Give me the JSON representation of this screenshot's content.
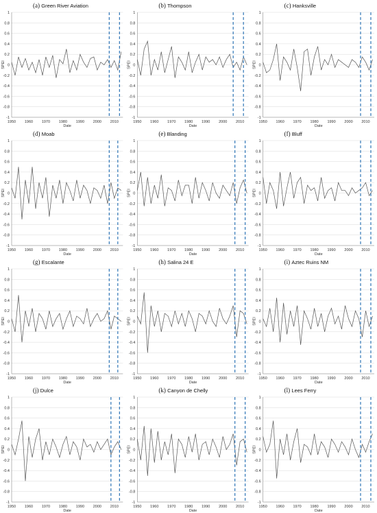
{
  "chart_data": [
    {
      "type": "line",
      "panel_letter": "(a)",
      "title": "Green River Aviation",
      "xlabel": "Date",
      "ylabel": "SPEI",
      "xlim": [
        1950,
        2015
      ],
      "ylim": [
        -1,
        1
      ],
      "x": [
        1950,
        1952,
        1954,
        1956,
        1958,
        1960,
        1962,
        1964,
        1966,
        1968,
        1970,
        1972,
        1974,
        1976,
        1978,
        1980,
        1982,
        1984,
        1986,
        1988,
        1990,
        1992,
        1994,
        1996,
        1998,
        2000,
        2002,
        2004,
        2006,
        2008,
        2010,
        2012,
        2014
      ],
      "series": [
        {
          "values": [
            0.05,
            -0.2,
            0.15,
            -0.05,
            0.12,
            -0.1,
            0.05,
            -0.15,
            0.1,
            -0.2,
            0.15,
            -0.05,
            0.18,
            -0.25,
            0.1,
            0.02,
            0.3,
            -0.15,
            0.08,
            -0.1,
            0.2,
            0.05,
            -0.05,
            0.12,
            0.15,
            -0.1,
            0.05,
            0.0,
            0.1,
            -0.05,
            0.08,
            -0.1,
            0.25
          ]
        }
      ],
      "vlines": [
        2007,
        2013
      ]
    },
    {
      "type": "line",
      "panel_letter": "(b)",
      "title": "Thompson",
      "xlabel": "Date",
      "ylabel": "SPEI",
      "xlim": [
        1950,
        2015
      ],
      "ylim": [
        -1,
        1
      ],
      "x": [
        1950,
        1952,
        1954,
        1956,
        1958,
        1960,
        1962,
        1964,
        1966,
        1968,
        1970,
        1972,
        1974,
        1976,
        1978,
        1980,
        1982,
        1984,
        1986,
        1988,
        1990,
        1992,
        1994,
        1996,
        1998,
        2000,
        2002,
        2004,
        2006,
        2008,
        2010,
        2012,
        2014
      ],
      "series": [
        {
          "values": [
            0.1,
            -0.2,
            0.3,
            0.45,
            -0.2,
            0.1,
            -0.1,
            0.25,
            -0.15,
            0.1,
            0.35,
            -0.25,
            0.15,
            0.05,
            -0.1,
            0.25,
            -0.15,
            0.05,
            0.2,
            -0.1,
            0.15,
            0.05,
            0.1,
            0.0,
            0.15,
            -0.05,
            0.1,
            0.2,
            -0.05,
            0.05,
            -0.1,
            0.15,
            0.0
          ]
        }
      ],
      "vlines": [
        2006,
        2012
      ]
    },
    {
      "type": "line",
      "panel_letter": "(c)",
      "title": "Hanksville",
      "xlabel": "Date",
      "ylabel": "SPEI",
      "xlim": [
        1950,
        2015
      ],
      "ylim": [
        -1,
        1
      ],
      "x": [
        1950,
        1952,
        1954,
        1956,
        1958,
        1960,
        1962,
        1964,
        1966,
        1968,
        1970,
        1972,
        1974,
        1976,
        1978,
        1980,
        1982,
        1984,
        1986,
        1988,
        1990,
        1992,
        1994,
        1996,
        1998,
        2000,
        2002,
        2004,
        2006,
        2008,
        2010,
        2012,
        2014
      ],
      "series": [
        {
          "values": [
            0.05,
            -0.15,
            -0.1,
            0.1,
            0.4,
            -0.3,
            0.15,
            0.05,
            -0.1,
            0.3,
            -0.05,
            -0.5,
            0.25,
            0.3,
            -0.2,
            0.15,
            0.35,
            -0.1,
            0.1,
            0.0,
            0.2,
            -0.05,
            0.1,
            0.05,
            0.0,
            -0.05,
            0.1,
            0.05,
            -0.05,
            0.15,
            0.05,
            -0.1,
            0.1
          ]
        }
      ],
      "vlines": [
        2007,
        2013
      ]
    },
    {
      "type": "line",
      "panel_letter": "(d)",
      "title": "Moab",
      "xlabel": "Date",
      "ylabel": "SPEI",
      "xlim": [
        1950,
        2015
      ],
      "ylim": [
        -1,
        1
      ],
      "x": [
        1950,
        1952,
        1954,
        1956,
        1958,
        1960,
        1962,
        1964,
        1966,
        1968,
        1970,
        1972,
        1974,
        1976,
        1978,
        1980,
        1982,
        1984,
        1986,
        1988,
        1990,
        1992,
        1994,
        1996,
        1998,
        2000,
        2002,
        2004,
        2006,
        2008,
        2010,
        2012,
        2014
      ],
      "series": [
        {
          "values": [
            0.1,
            -0.1,
            0.5,
            -0.5,
            0.25,
            -0.2,
            0.5,
            -0.3,
            0.2,
            -0.1,
            0.3,
            -0.45,
            0.15,
            -0.1,
            0.25,
            -0.2,
            0.2,
            0.05,
            -0.15,
            0.25,
            -0.1,
            0.15,
            0.05,
            -0.2,
            0.1,
            0.05,
            -0.1,
            0.15,
            -0.2,
            0.2,
            -0.1,
            0.1,
            0.05
          ]
        }
      ],
      "vlines": [
        2007,
        2012
      ]
    },
    {
      "type": "line",
      "panel_letter": "(e)",
      "title": "Blanding",
      "xlabel": "Date",
      "ylabel": "SPEI",
      "xlim": [
        1950,
        2015
      ],
      "ylim": [
        -1,
        1
      ],
      "x": [
        1950,
        1952,
        1954,
        1956,
        1958,
        1960,
        1962,
        1964,
        1966,
        1968,
        1970,
        1972,
        1974,
        1976,
        1978,
        1980,
        1982,
        1984,
        1986,
        1988,
        1990,
        1992,
        1994,
        1996,
        1998,
        2000,
        2002,
        2004,
        2006,
        2008,
        2010,
        2012,
        2014
      ],
      "series": [
        {
          "values": [
            0.05,
            0.4,
            -0.25,
            0.3,
            -0.2,
            0.15,
            -0.1,
            0.35,
            -0.25,
            0.1,
            0.05,
            -0.15,
            0.25,
            -0.05,
            0.15,
            0.15,
            -0.2,
            0.3,
            -0.1,
            0.2,
            0.05,
            -0.15,
            0.2,
            0.0,
            -0.1,
            0.15,
            0.05,
            -0.05,
            0.2,
            -0.2,
            0.1,
            0.25,
            0.0
          ]
        }
      ],
      "vlines": [
        2007,
        2013
      ]
    },
    {
      "type": "line",
      "panel_letter": "(f)",
      "title": "Bluff",
      "xlabel": "Date",
      "ylabel": "SPEI",
      "xlim": [
        1950,
        2015
      ],
      "ylim": [
        -1,
        1
      ],
      "x": [
        1950,
        1952,
        1954,
        1956,
        1958,
        1960,
        1962,
        1964,
        1966,
        1968,
        1970,
        1972,
        1974,
        1976,
        1978,
        1980,
        1982,
        1984,
        1986,
        1988,
        1990,
        1992,
        1994,
        1996,
        1998,
        2000,
        2002,
        2004,
        2006,
        2008,
        2010,
        2012,
        2014
      ],
      "series": [
        {
          "values": [
            0.3,
            -0.2,
            0.2,
            0.05,
            -0.3,
            0.4,
            -0.25,
            0.1,
            0.4,
            -0.1,
            0.2,
            0.3,
            -0.2,
            0.15,
            0.05,
            0.1,
            -0.15,
            0.3,
            -0.1,
            0.05,
            0.1,
            -0.15,
            0.2,
            0.05,
            0.05,
            -0.05,
            0.1,
            0.0,
            0.05,
            0.1,
            0.2,
            -0.05,
            0.05
          ]
        }
      ],
      "vlines": [
        2007,
        2013
      ]
    },
    {
      "type": "line",
      "panel_letter": "(g)",
      "title": "Escalante",
      "xlabel": "Date",
      "ylabel": "SPEI",
      "xlim": [
        1950,
        2015
      ],
      "ylim": [
        -1,
        1
      ],
      "x": [
        1950,
        1952,
        1954,
        1956,
        1958,
        1960,
        1962,
        1964,
        1966,
        1968,
        1970,
        1972,
        1974,
        1976,
        1978,
        1980,
        1982,
        1984,
        1986,
        1988,
        1990,
        1992,
        1994,
        1996,
        1998,
        2000,
        2002,
        2004,
        2006,
        2008,
        2010,
        2012,
        2014
      ],
      "series": [
        {
          "values": [
            0.05,
            -0.2,
            0.5,
            -0.4,
            0.2,
            -0.1,
            0.25,
            -0.2,
            0.15,
            0.05,
            -0.15,
            0.2,
            -0.1,
            0.05,
            0.15,
            -0.15,
            0.05,
            0.2,
            -0.1,
            0.1,
            0.05,
            -0.05,
            0.25,
            -0.1,
            0.05,
            0.15,
            0.0,
            0.05,
            0.2,
            -0.15,
            0.1,
            0.05,
            0.0
          ]
        }
      ],
      "vlines": [
        2007,
        2012
      ]
    },
    {
      "type": "line",
      "panel_letter": "(h)",
      "title": "Salina 24 E",
      "xlabel": "Date",
      "ylabel": "SPEI",
      "xlim": [
        1950,
        2015
      ],
      "ylim": [
        -1,
        1
      ],
      "x": [
        1950,
        1952,
        1954,
        1956,
        1958,
        1960,
        1962,
        1964,
        1966,
        1968,
        1970,
        1972,
        1974,
        1976,
        1978,
        1980,
        1982,
        1984,
        1986,
        1988,
        1990,
        1992,
        1994,
        1996,
        1998,
        2000,
        2002,
        2004,
        2006,
        2008,
        2010,
        2012,
        2014
      ],
      "series": [
        {
          "values": [
            0.1,
            -0.05,
            0.55,
            -0.6,
            0.3,
            -0.1,
            0.2,
            -0.2,
            0.15,
            0.1,
            -0.1,
            0.2,
            -0.05,
            0.15,
            -0.1,
            0.2,
            0.05,
            -0.2,
            0.15,
            0.1,
            -0.05,
            0.2,
            0.0,
            -0.1,
            0.25,
            0.05,
            -0.05,
            0.1,
            0.3,
            -0.3,
            0.2,
            0.15,
            -0.05
          ]
        }
      ],
      "vlines": [
        2007,
        2013
      ]
    },
    {
      "type": "line",
      "panel_letter": "(i)",
      "title": "Aztec Ruins NM",
      "xlabel": "Date",
      "ylabel": "SPEI",
      "xlim": [
        1950,
        2015
      ],
      "ylim": [
        -1,
        1
      ],
      "x": [
        1950,
        1952,
        1954,
        1956,
        1958,
        1960,
        1962,
        1964,
        1966,
        1968,
        1970,
        1972,
        1974,
        1976,
        1978,
        1980,
        1982,
        1984,
        1986,
        1988,
        1990,
        1992,
        1994,
        1996,
        1998,
        2000,
        2002,
        2004,
        2006,
        2008,
        2010,
        2012,
        2014
      ],
      "series": [
        {
          "values": [
            0.05,
            -0.1,
            0.25,
            -0.2,
            0.45,
            -0.4,
            0.35,
            -0.25,
            0.2,
            -0.1,
            0.3,
            -0.45,
            0.2,
            0.05,
            -0.15,
            0.25,
            -0.1,
            0.15,
            -0.2,
            0.1,
            0.25,
            -0.05,
            0.1,
            -0.15,
            0.3,
            0.05,
            -0.1,
            0.2,
            0.05,
            -0.3,
            0.2,
            -0.1,
            0.1
          ]
        }
      ],
      "vlines": [
        2007,
        2013
      ]
    },
    {
      "type": "line",
      "panel_letter": "(j)",
      "title": "Dulce",
      "xlabel": "Date",
      "ylabel": "SPEI",
      "xlim": [
        1950,
        2015
      ],
      "ylim": [
        -1,
        1
      ],
      "x": [
        1950,
        1952,
        1954,
        1956,
        1958,
        1960,
        1962,
        1964,
        1966,
        1968,
        1970,
        1972,
        1974,
        1976,
        1978,
        1980,
        1982,
        1984,
        1986,
        1988,
        1990,
        1992,
        1994,
        1996,
        1998,
        2000,
        2002,
        2004,
        2006,
        2008,
        2010,
        2012,
        2014
      ],
      "series": [
        {
          "values": [
            0.1,
            -0.1,
            0.2,
            0.55,
            -0.6,
            0.25,
            -0.15,
            0.2,
            0.4,
            -0.2,
            0.15,
            -0.1,
            0.2,
            0.05,
            -0.15,
            0.1,
            0.25,
            -0.1,
            0.15,
            0.05,
            -0.2,
            0.2,
            0.05,
            0.1,
            -0.05,
            0.15,
            0.0,
            0.1,
            0.2,
            -0.1,
            0.05,
            0.15,
            0.0
          ]
        }
      ],
      "vlines": [
        2008,
        2013
      ]
    },
    {
      "type": "line",
      "panel_letter": "(k)",
      "title": "Canyon de Chelly",
      "xlabel": "Date",
      "ylabel": "SPEI",
      "xlim": [
        1950,
        2015
      ],
      "ylim": [
        -1,
        1
      ],
      "x": [
        1950,
        1952,
        1954,
        1956,
        1958,
        1960,
        1962,
        1964,
        1966,
        1968,
        1970,
        1972,
        1974,
        1976,
        1978,
        1980,
        1982,
        1984,
        1986,
        1988,
        1990,
        1992,
        1994,
        1996,
        1998,
        2000,
        2002,
        2004,
        2006,
        2008,
        2010,
        2012,
        2014
      ],
      "series": [
        {
          "values": [
            0.2,
            -0.2,
            0.45,
            -0.5,
            0.4,
            -0.25,
            0.35,
            -0.2,
            0.15,
            -0.1,
            0.3,
            -0.45,
            0.2,
            0.1,
            -0.15,
            0.25,
            -0.05,
            0.3,
            -0.2,
            0.1,
            0.15,
            -0.1,
            0.2,
            0.05,
            -0.15,
            0.25,
            0.0,
            0.1,
            0.3,
            -0.3,
            0.15,
            0.2,
            -0.05
          ]
        }
      ],
      "vlines": [
        2007,
        2013
      ]
    },
    {
      "type": "line",
      "panel_letter": "(l)",
      "title": "Lees Ferry",
      "xlabel": "Date",
      "ylabel": "SPEI",
      "xlim": [
        1950,
        2015
      ],
      "ylim": [
        -1,
        1
      ],
      "x": [
        1950,
        1952,
        1954,
        1956,
        1958,
        1960,
        1962,
        1964,
        1966,
        1968,
        1970,
        1972,
        1974,
        1976,
        1978,
        1980,
        1982,
        1984,
        1986,
        1988,
        1990,
        1992,
        1994,
        1996,
        1998,
        2000,
        2002,
        2004,
        2006,
        2008,
        2010,
        2012,
        2014
      ],
      "series": [
        {
          "values": [
            0.25,
            -0.05,
            0.1,
            0.55,
            -0.55,
            0.2,
            -0.1,
            0.3,
            -0.2,
            0.15,
            0.4,
            -0.25,
            0.1,
            0.05,
            -0.1,
            0.3,
            -0.1,
            0.15,
            0.05,
            -0.15,
            0.2,
            0.1,
            -0.05,
            0.15,
            0.05,
            -0.1,
            0.2,
            0.0,
            -0.15,
            0.1,
            -0.05,
            0.15,
            0.3
          ]
        }
      ],
      "vlines": [
        2007,
        2013
      ]
    }
  ],
  "style": {
    "line_color": "#555555",
    "vline_color": "#2e75b6",
    "grid_color": "#d9d9d9",
    "axis_color": "#888888"
  }
}
